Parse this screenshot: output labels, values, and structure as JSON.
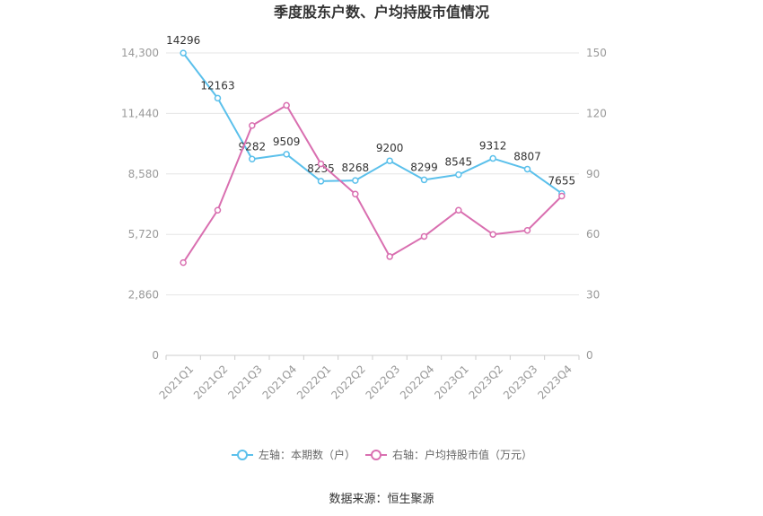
{
  "chart_data": {
    "type": "line",
    "title": "季度股东户数、户均持股市值情况",
    "categories": [
      "2021Q1",
      "2021Q2",
      "2021Q3",
      "2021Q4",
      "2022Q1",
      "2022Q2",
      "2022Q3",
      "2022Q4",
      "2023Q1",
      "2023Q2",
      "2023Q3",
      "2023Q4"
    ],
    "y_left": {
      "ticks": [
        "0",
        "2,860",
        "5,720",
        "8,580",
        "11,440",
        "14,300"
      ],
      "range": [
        0,
        14300
      ]
    },
    "y_right": {
      "ticks": [
        "0",
        "30",
        "60",
        "90",
        "120",
        "150"
      ],
      "range": [
        0,
        150
      ]
    },
    "series": [
      {
        "name": "左轴：本期数（户）",
        "axis": "left",
        "color": "#5bc0eb",
        "values": [
          14296,
          12163,
          9282,
          9509,
          8235,
          8268,
          9200,
          8299,
          8545,
          9312,
          8807,
          7655
        ],
        "labels": [
          "14296",
          "12163",
          "9282",
          "9509",
          "8235",
          "8268",
          "9200",
          "8299",
          "8545",
          "9312",
          "8807",
          "7655"
        ]
      },
      {
        "name": "右轴：户均持股市值（万元）",
        "axis": "right",
        "color": "#d96fb0",
        "values": [
          46,
          72,
          114,
          124,
          95,
          80,
          49,
          59,
          72,
          60,
          62,
          79
        ]
      }
    ],
    "grid": true,
    "legend": "bottom"
  },
  "footer": {
    "source": "数据来源：恒生聚源"
  }
}
